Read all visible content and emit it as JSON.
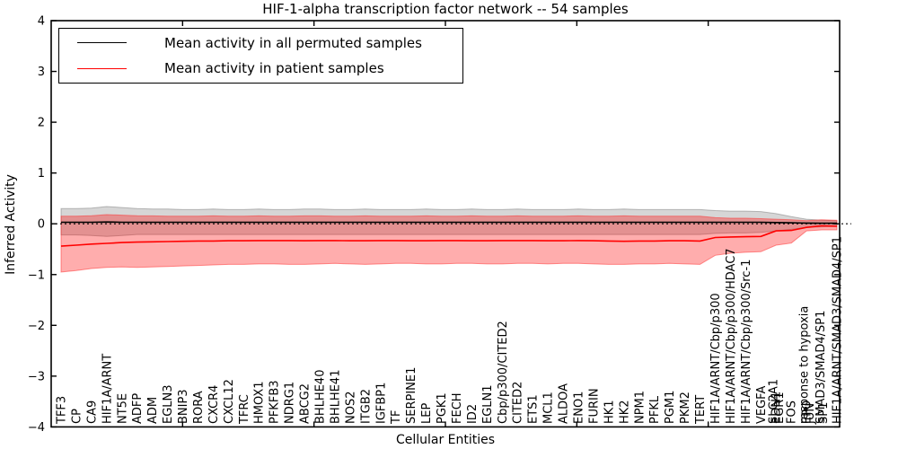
{
  "chart_data": {
    "type": "line",
    "title": "HIF-1-alpha transcription factor network -- 54 samples",
    "xlabel": "Cellular Entities",
    "ylabel": "Inferred Activity",
    "ylim": [
      -4,
      4
    ],
    "ytick_values": [
      4,
      3,
      2,
      1,
      0,
      -1,
      -2,
      -3,
      -4
    ],
    "ytick_labels": [
      "4",
      "3",
      "2",
      "1",
      "0",
      "−1",
      "−2",
      "−3",
      "−4"
    ],
    "xtick_major_values": [
      10,
      20,
      30,
      40,
      50
    ],
    "x_axis_range": [
      0,
      60
    ],
    "grid": false,
    "legend_position": "upper-left",
    "zero_line": 0,
    "categories": [
      "TFF3",
      "CP",
      "CA9",
      "HIF1A/ARNT",
      "NT5E",
      "ADFP",
      "ADM",
      "EGLN3",
      "BNIP3",
      "RORA",
      "CXCR4",
      "CXCL12",
      "TFRC",
      "HMOX1",
      "PFKFB3",
      "NDRG1",
      "ABCG2",
      "BHLHE40",
      "BHLHE41",
      "NOS2",
      "ITGB2",
      "IGFBP1",
      "TF",
      "SERPINE1",
      "LEP",
      "PGK1",
      "FECH",
      "ID2",
      "EGLN1",
      "Cbp/p300/CITED2",
      "CITED2",
      "ETS1",
      "MCL1",
      "ALDOA",
      "ENO1",
      "FURIN",
      "HK1",
      "HK2",
      "NPM1",
      "PFKL",
      "PGM1",
      "PKM2",
      "TERT",
      "HIF1A/ARNT/Cbp/p300",
      "HIF1A/ARNT/Cbp/p300/HDAC7",
      "HIF1A/ARNT/Cbp/p300/Src-1",
      "VEGFA",
      [
        "SLC2A1",
        "EDN1",
        "EGR1"
      ],
      "FOS",
      [
        "response to hypoxia",
        "EPO",
        "JUN"
      ],
      [
        "SMAD3/SMAD4/SP1",
        "SP1"
      ],
      [
        "HIF1A/ARNT/SMAD3/SMAD4/SP1"
      ]
    ],
    "series": [
      {
        "name": "Mean activity in all permuted samples",
        "color": "#000000",
        "values": [
          0.03,
          0.03,
          0.03,
          0.035,
          0.03,
          0.03,
          0.03,
          0.03,
          0.03,
          0.03,
          0.03,
          0.03,
          0.03,
          0.03,
          0.03,
          0.03,
          0.03,
          0.03,
          0.03,
          0.03,
          0.03,
          0.03,
          0.03,
          0.03,
          0.03,
          0.03,
          0.03,
          0.03,
          0.03,
          0.03,
          0.03,
          0.03,
          0.03,
          0.03,
          0.03,
          0.03,
          0.03,
          0.03,
          0.03,
          0.03,
          0.03,
          0.03,
          0.03,
          0.03,
          0.03,
          0.03,
          0.03,
          0.025,
          0.02,
          0.015,
          0.01,
          0.01
        ]
      },
      {
        "name": "Mean activity in patient samples",
        "color": "#ff0000",
        "values": [
          -0.44,
          -0.42,
          -0.4,
          -0.385,
          -0.37,
          -0.36,
          -0.355,
          -0.35,
          -0.345,
          -0.34,
          -0.34,
          -0.335,
          -0.335,
          -0.33,
          -0.33,
          -0.33,
          -0.335,
          -0.33,
          -0.33,
          -0.335,
          -0.335,
          -0.33,
          -0.33,
          -0.335,
          -0.335,
          -0.33,
          -0.33,
          -0.335,
          -0.335,
          -0.33,
          -0.33,
          -0.33,
          -0.335,
          -0.335,
          -0.33,
          -0.335,
          -0.34,
          -0.345,
          -0.34,
          -0.34,
          -0.335,
          -0.335,
          -0.34,
          -0.27,
          -0.26,
          -0.255,
          -0.25,
          -0.14,
          -0.13,
          -0.07,
          -0.04,
          -0.05
        ]
      }
    ],
    "bands": [
      {
        "name": "permuted-samples-range",
        "fill": "rgba(120,120,120,0.30)",
        "edge": "rgba(110,110,110,0.45)",
        "upper": [
          0.3,
          0.3,
          0.31,
          0.34,
          0.32,
          0.3,
          0.29,
          0.29,
          0.28,
          0.28,
          0.29,
          0.28,
          0.28,
          0.29,
          0.28,
          0.28,
          0.29,
          0.29,
          0.28,
          0.28,
          0.29,
          0.28,
          0.28,
          0.28,
          0.29,
          0.28,
          0.28,
          0.29,
          0.28,
          0.28,
          0.29,
          0.28,
          0.28,
          0.28,
          0.29,
          0.28,
          0.28,
          0.29,
          0.28,
          0.28,
          0.28,
          0.28,
          0.28,
          0.26,
          0.25,
          0.25,
          0.24,
          0.2,
          0.14,
          0.09,
          0.07,
          0.06
        ],
        "lower": [
          -0.22,
          -0.22,
          -0.23,
          -0.25,
          -0.23,
          -0.21,
          -0.21,
          -0.21,
          -0.21,
          -0.21,
          -0.21,
          -0.21,
          -0.21,
          -0.21,
          -0.21,
          -0.21,
          -0.21,
          -0.21,
          -0.21,
          -0.21,
          -0.21,
          -0.21,
          -0.21,
          -0.21,
          -0.21,
          -0.21,
          -0.21,
          -0.21,
          -0.21,
          -0.21,
          -0.21,
          -0.21,
          -0.21,
          -0.21,
          -0.21,
          -0.21,
          -0.21,
          -0.21,
          -0.21,
          -0.21,
          -0.21,
          -0.21,
          -0.21,
          -0.19,
          -0.18,
          -0.18,
          -0.17,
          -0.14,
          -0.11,
          -0.07,
          -0.06,
          -0.05
        ]
      },
      {
        "name": "patient-samples-range",
        "fill": "rgba(255,0,0,0.32)",
        "edge": "rgba(255,40,40,0.50)",
        "upper": [
          0.15,
          0.15,
          0.16,
          0.18,
          0.17,
          0.16,
          0.155,
          0.15,
          0.15,
          0.15,
          0.155,
          0.15,
          0.15,
          0.155,
          0.15,
          0.15,
          0.155,
          0.155,
          0.15,
          0.15,
          0.155,
          0.15,
          0.15,
          0.15,
          0.155,
          0.15,
          0.15,
          0.155,
          0.15,
          0.15,
          0.155,
          0.15,
          0.15,
          0.15,
          0.155,
          0.15,
          0.15,
          0.155,
          0.15,
          0.15,
          0.15,
          0.15,
          0.15,
          0.12,
          0.11,
          0.11,
          0.1,
          0.09,
          0.08,
          0.06,
          0.08,
          0.07
        ],
        "lower": [
          -0.95,
          -0.92,
          -0.88,
          -0.86,
          -0.85,
          -0.86,
          -0.85,
          -0.84,
          -0.83,
          -0.82,
          -0.81,
          -0.8,
          -0.8,
          -0.79,
          -0.79,
          -0.8,
          -0.8,
          -0.79,
          -0.78,
          -0.79,
          -0.8,
          -0.79,
          -0.78,
          -0.78,
          -0.79,
          -0.79,
          -0.78,
          -0.78,
          -0.79,
          -0.79,
          -0.78,
          -0.78,
          -0.79,
          -0.78,
          -0.78,
          -0.79,
          -0.8,
          -0.8,
          -0.79,
          -0.79,
          -0.78,
          -0.79,
          -0.8,
          -0.62,
          -0.58,
          -0.56,
          -0.55,
          -0.42,
          -0.38,
          -0.14,
          -0.12,
          -0.12
        ]
      }
    ]
  },
  "legend": {
    "items": [
      {
        "label": "Mean activity in all permuted samples",
        "color": "#000000"
      },
      {
        "label": "Mean activity in patient samples",
        "color": "#ff0000"
      }
    ]
  }
}
